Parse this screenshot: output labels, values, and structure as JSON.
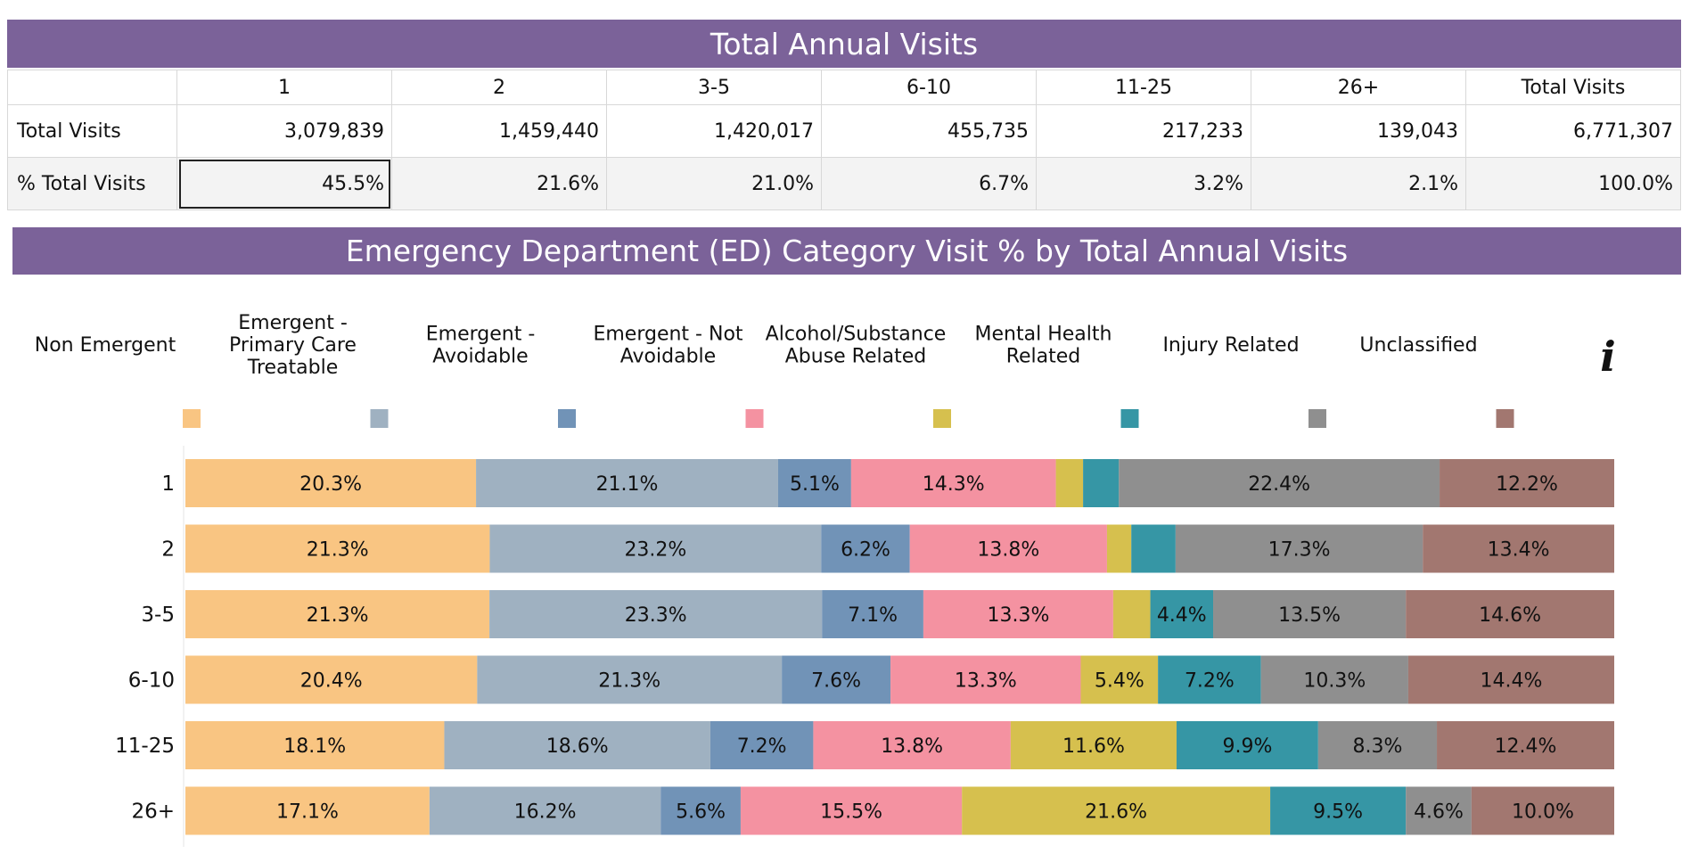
{
  "top_banner": {
    "title": "Total Annual Visits"
  },
  "visits_table": {
    "headers": [
      "",
      "1",
      "2",
      "3-5",
      "6-10",
      "11-25",
      "26+",
      "Total Visits"
    ],
    "rows": [
      {
        "label": "Total Visits",
        "values": [
          "3,079,839",
          "1,459,440",
          "1,420,017",
          "455,735",
          "217,233",
          "139,043",
          "6,771,307"
        ]
      },
      {
        "label": "% Total Visits",
        "values": [
          "45.5%",
          "21.6%",
          "21.0%",
          "6.7%",
          "3.2%",
          "2.1%",
          "100.0%"
        ]
      }
    ]
  },
  "colors": {
    "banner": "#7b6299",
    "series": [
      "#f9c582",
      "#9fb1c1",
      "#7193b7",
      "#f492a1",
      "#d6c04e",
      "#3696a5",
      "#8f8f8f",
      "#a27770"
    ]
  },
  "icons": {
    "info": "info-icon"
  },
  "info_glyph": "i",
  "chart_data": {
    "type": "bar",
    "orientation": "horizontal",
    "stacked": "100%",
    "title": "Emergency Department (ED) Category Visit % by Total Annual Visits",
    "categories": [
      "1",
      "2",
      "3-5",
      "6-10",
      "11-25",
      "26+"
    ],
    "xlim": [
      0,
      100
    ],
    "legend_position": "top",
    "series": [
      {
        "name": "Non Emergent",
        "values": [
          20.3,
          21.3,
          21.3,
          20.4,
          18.1,
          17.1
        ]
      },
      {
        "name": "Emergent - Primary Care Treatable",
        "values": [
          21.1,
          23.2,
          23.3,
          21.3,
          18.6,
          16.2
        ]
      },
      {
        "name": "Emergent - Avoidable",
        "values": [
          5.1,
          6.2,
          7.1,
          7.6,
          7.2,
          5.6
        ]
      },
      {
        "name": "Emergent - Not Avoidable",
        "values": [
          14.3,
          13.8,
          13.3,
          13.3,
          13.8,
          15.5
        ]
      },
      {
        "name": "Alcohol/Substance Abuse Related",
        "values": [
          1.9,
          1.7,
          2.6,
          5.4,
          11.6,
          21.6
        ]
      },
      {
        "name": "Mental Health Related",
        "values": [
          2.5,
          3.1,
          4.4,
          7.2,
          9.9,
          9.5
        ]
      },
      {
        "name": "Injury Related",
        "values": [
          22.4,
          17.3,
          13.5,
          10.3,
          8.3,
          4.6
        ]
      },
      {
        "name": "Unclassified",
        "values": [
          12.2,
          13.4,
          14.6,
          14.4,
          12.4,
          10.0
        ]
      }
    ],
    "data_labels_min": 3.5
  }
}
